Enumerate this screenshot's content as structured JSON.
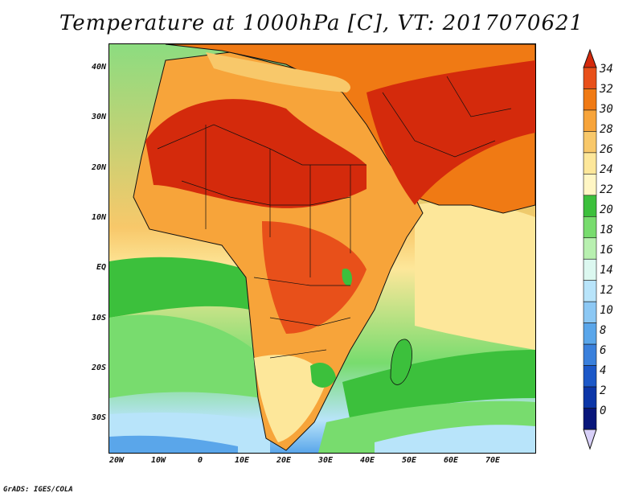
{
  "title": "Temperature at 1000hPa [C], VT: 2017070621",
  "credit": "GrADS: IGES/COLA",
  "map": {
    "lat_labels": [
      "40N",
      "30N",
      "20N",
      "10N",
      "EQ",
      "10S",
      "20S",
      "30S"
    ],
    "lat_values": [
      40,
      30,
      20,
      10,
      0,
      -10,
      -20,
      -30
    ],
    "lon_labels": [
      "20W",
      "10W",
      "0",
      "10E",
      "20E",
      "30E",
      "40E",
      "50E",
      "60E",
      "70E"
    ],
    "lon_values": [
      -20,
      -10,
      0,
      10,
      20,
      30,
      40,
      50,
      60,
      70
    ],
    "lat_range": [
      -36,
      45
    ],
    "lon_range": [
      -23,
      80
    ]
  },
  "colorbar": {
    "labels": [
      "34",
      "32",
      "30",
      "28",
      "26",
      "24",
      "22",
      "20",
      "18",
      "16",
      "14",
      "12",
      "10",
      "8",
      "6",
      "4",
      "2",
      "0"
    ],
    "colors": [
      "#d42a0c",
      "#e8501a",
      "#f07a14",
      "#f7a43a",
      "#f8c86a",
      "#fde79a",
      "#fff6c4",
      "#3cc03c",
      "#78dc6e",
      "#b8f0b0",
      "#dcf8f0",
      "#b8e4fa",
      "#8cc8f4",
      "#5aa6ea",
      "#3a80dc",
      "#1c58c8",
      "#0c36a8",
      "#08167a",
      "#d8d0f8"
    ]
  },
  "colors": {
    "hot": "#d42a0c",
    "warm": "#f07a14",
    "mild": "#fde79a",
    "green": "#3cc03c",
    "cool": "#8cc8f4"
  }
}
